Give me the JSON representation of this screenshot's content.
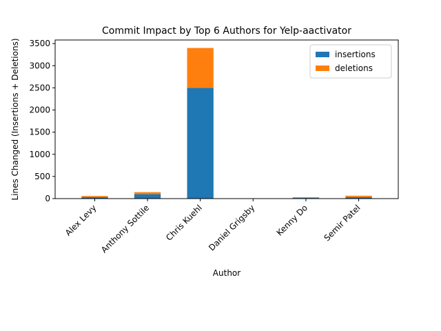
{
  "chart_data": {
    "type": "bar",
    "stacked": true,
    "title": "Commit Impact by Top 6 Authors for Yelp-aactivator",
    "xlabel": "Author",
    "ylabel": "Lines Changed (Insertions + Deletions)",
    "categories": [
      "Alex Levy",
      "Anthony Sottile",
      "Chris Kuehl",
      "Daniel Grigsby",
      "Kenny Do",
      "Semir Patel"
    ],
    "series": [
      {
        "name": "insertions",
        "color": "#1f77b4",
        "values": [
          35,
          100,
          2500,
          0,
          15,
          35
        ]
      },
      {
        "name": "deletions",
        "color": "#ff7f0e",
        "values": [
          25,
          45,
          900,
          0,
          15,
          30
        ]
      }
    ],
    "ylim": [
      0,
      3580
    ],
    "yticks": [
      0,
      500,
      1000,
      1500,
      2000,
      2500,
      3000,
      3500
    ],
    "legend_position": "top-right",
    "grid": false
  }
}
